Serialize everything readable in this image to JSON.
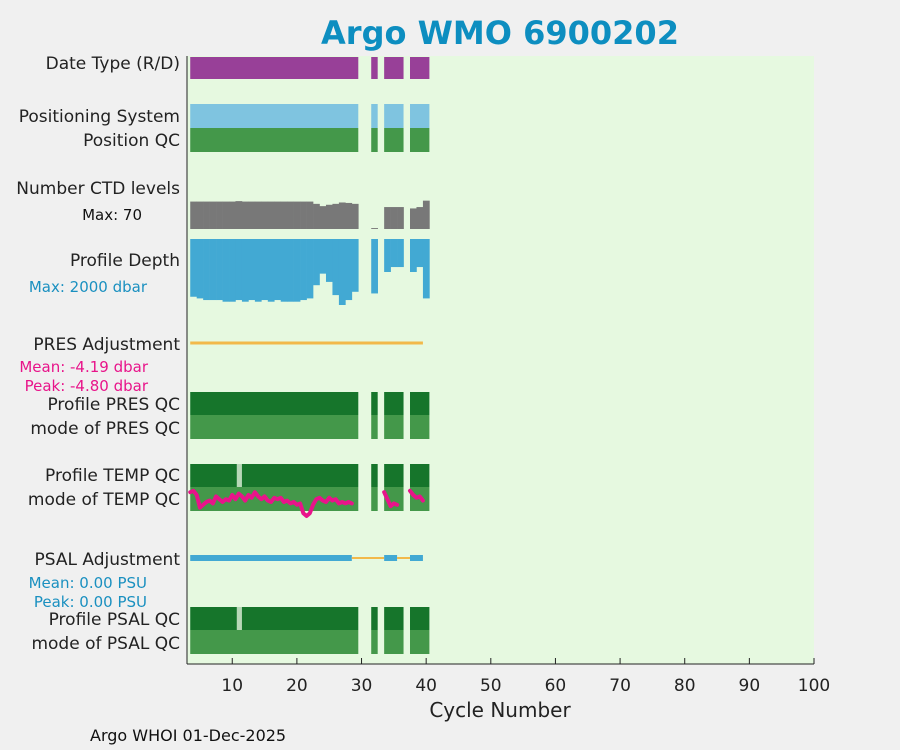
{
  "chart_data": {
    "type": "bar",
    "title": "Argo WMO 6900202",
    "xlabel": "Cycle Number",
    "xlim": [
      3,
      100
    ],
    "xticks": [
      10,
      20,
      30,
      40,
      50,
      60,
      70,
      80,
      90,
      100
    ],
    "footer": "Argo WHOI 01-Dec-2025",
    "cycles": {
      "present_ranges": [
        [
          4,
          29
        ],
        [
          32,
          32
        ],
        [
          34,
          36
        ],
        [
          38,
          40
        ]
      ]
    },
    "rows": [
      {
        "label": "Date Type (R/D)"
      },
      {
        "label": "Positioning System"
      },
      {
        "label": "Position QC"
      },
      {
        "label": "Number CTD levels",
        "note": "Max: 70"
      },
      {
        "label": "Profile Depth",
        "note": "Max: 2000 dbar"
      },
      {
        "label": "PRES Adjustment",
        "mean": "Mean: -4.19 dbar",
        "peak": "Peak: -4.80 dbar"
      },
      {
        "label": "Profile PRES QC"
      },
      {
        "label": "mode of PRES QC"
      },
      {
        "label": "Profile TEMP QC"
      },
      {
        "label": "mode of TEMP QC"
      },
      {
        "label": "PSAL Adjustment",
        "mean": "Mean: 0.00 PSU",
        "peak": "Peak: 0.00 PSU"
      },
      {
        "label": "Profile PSAL QC"
      },
      {
        "label": "mode of PSAL QC"
      }
    ],
    "ctd_levels": {
      "cycles": [
        4,
        5,
        6,
        7,
        8,
        9,
        10,
        11,
        12,
        13,
        14,
        15,
        16,
        17,
        18,
        19,
        20,
        21,
        22,
        23,
        24,
        25,
        26,
        27,
        28,
        29,
        32,
        34,
        35,
        36,
        38,
        39,
        40
      ],
      "values": [
        60,
        60,
        60,
        60,
        60,
        60,
        60,
        61,
        60,
        60,
        60,
        60,
        60,
        60,
        60,
        60,
        60,
        60,
        60,
        55,
        50,
        53,
        55,
        58,
        57,
        55,
        2,
        48,
        48,
        48,
        45,
        48,
        62
      ]
    },
    "profile_depth": {
      "max": 2000,
      "cycles": [
        4,
        5,
        6,
        7,
        8,
        9,
        10,
        11,
        12,
        13,
        14,
        15,
        16,
        17,
        18,
        19,
        20,
        21,
        22,
        23,
        24,
        25,
        26,
        27,
        28,
        29,
        32,
        34,
        35,
        36,
        38,
        39,
        40
      ],
      "values": [
        1750,
        1800,
        1850,
        1850,
        1850,
        1900,
        1900,
        1850,
        1900,
        1850,
        1900,
        1850,
        1900,
        1850,
        1900,
        1900,
        1900,
        1850,
        1800,
        1400,
        1050,
        1300,
        1700,
        2000,
        1850,
        1600,
        1650,
        1000,
        850,
        850,
        1000,
        850,
        1800
      ]
    },
    "pres_adjustment": {
      "range": [
        4,
        40
      ],
      "color": "#f2b94a"
    },
    "psal_adjustment": {
      "segments": [
        [
          4,
          29,
          "#42a9d3"
        ],
        [
          29,
          34,
          "#f2b94a"
        ],
        [
          34,
          36,
          "#42a9d3"
        ],
        [
          36,
          38,
          "#f2b94a"
        ],
        [
          38,
          40,
          "#42a9d3"
        ]
      ]
    },
    "temp_qc_gaps": [
      [
        10.7,
        11.5
      ]
    ],
    "psal_qc_gaps": [
      [
        10.7,
        11.5
      ]
    ],
    "temp_mode_line": {
      "cycles": [
        4,
        4.5,
        5,
        5.5,
        6,
        6.5,
        7,
        7.5,
        8,
        8.5,
        9,
        9.5,
        10,
        10.5,
        11,
        11.5,
        12,
        12.5,
        13,
        13.5,
        14,
        14.5,
        15,
        15.5,
        16,
        16.5,
        17,
        17.5,
        18,
        18.5,
        19,
        19.5,
        20,
        20.5,
        21,
        21.5,
        22,
        22.5,
        23,
        23.5,
        24,
        24.5,
        25,
        25.5,
        26,
        26.5,
        27,
        27.5,
        28,
        28.5,
        29
      ],
      "values": [
        0.15,
        0.1,
        0.25,
        0.7,
        0.6,
        0.5,
        0.45,
        0.55,
        0.3,
        0.4,
        0.5,
        0.4,
        0.45,
        0.25,
        0.4,
        0.2,
        0.3,
        0.45,
        0.25,
        0.35,
        0.15,
        0.3,
        0.4,
        0.3,
        0.45,
        0.5,
        0.35,
        0.4,
        0.35,
        0.5,
        0.45,
        0.55,
        0.5,
        0.6,
        0.55,
        0.9,
        1.0,
        0.9,
        0.6,
        0.4,
        0.35,
        0.45,
        0.5,
        0.35,
        0.45,
        0.4,
        0.55,
        0.5,
        0.55,
        0.5,
        0.55
      ],
      "segments_2": {
        "cycles": [
          34,
          34.5,
          35,
          35.5,
          36,
          38,
          38.5,
          39,
          39.5,
          40
        ],
        "values": [
          0.15,
          0.4,
          0.65,
          0.55,
          0.6,
          0.1,
          0.25,
          0.35,
          0.3,
          0.45
        ]
      }
    },
    "colors": {
      "date_type": "#984098",
      "positioning": "#7fc4e0",
      "position_qc": "#44984a",
      "ctd": "#787878",
      "depth": "#42a9d3",
      "qc_dark": "#16752b",
      "qc_light": "#44984a",
      "gap": "#b8d8b8",
      "mean_pres": "#e8148a",
      "mean_psal": "#1a90c0",
      "title": "#0d8ec0",
      "temp_line": "#e8148a",
      "plot_bg": "#e6f9e0"
    }
  }
}
